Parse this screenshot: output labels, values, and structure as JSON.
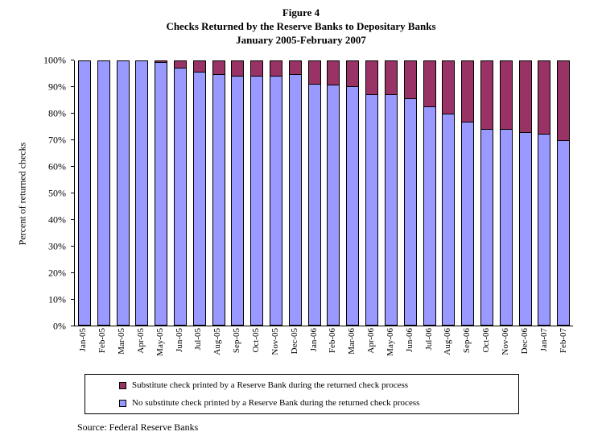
{
  "title": {
    "line1": "Figure 4",
    "line2": "Checks Returned by the Reserve Banks to Depositary Banks",
    "line3": "January 2005-February 2007"
  },
  "chart_data": {
    "type": "bar",
    "stacked": true,
    "title": "Checks Returned by the Reserve Banks to Depositary Banks, January 2005-February 2007",
    "xlabel": "",
    "ylabel": "Percent of returned checks",
    "ylim": [
      0,
      100
    ],
    "grid": false,
    "legend_position": "bottom",
    "yticks": [
      "0%",
      "10%",
      "20%",
      "30%",
      "40%",
      "50%",
      "60%",
      "70%",
      "80%",
      "90%",
      "100%"
    ],
    "categories": [
      "Jan-05",
      "Feb-05",
      "Mar-05",
      "Apr-05",
      "May-05",
      "Jun-05",
      "Jul-05",
      "Aug-05",
      "Sep-05",
      "Oct-05",
      "Nov-05",
      "Dec-05",
      "Jan-06",
      "Feb-06",
      "Mar-06",
      "Apr-06",
      "May-06",
      "Jun-06",
      "Jul-06",
      "Aug-06",
      "Sep-06",
      "Oct-06",
      "Nov-06",
      "Dec-06",
      "Jan-07",
      "Feb-07"
    ],
    "series": [
      {
        "name": "Substitute check printed by a Reserve Bank during the returned check process",
        "color": "#993366",
        "values": [
          0,
          0,
          0,
          0,
          1,
          3,
          4.5,
          5.5,
          6,
          6,
          6,
          5.5,
          9,
          9.5,
          10,
          13,
          13,
          14.5,
          17.5,
          20.5,
          23.5,
          26,
          26,
          27.5,
          28,
          30.5
        ]
      },
      {
        "name": "No substitute check printed by a Reserve Bank during the returned check process",
        "color": "#9999FF",
        "values": [
          100,
          100,
          100,
          100,
          99,
          97,
          95.5,
          94.5,
          94,
          94,
          94,
          94.5,
          91,
          90.5,
          90,
          87,
          87,
          85.5,
          82.5,
          79.5,
          76.5,
          74,
          74,
          72.5,
          72,
          69.5
        ]
      }
    ]
  },
  "source": "Source:  Federal Reserve Banks"
}
